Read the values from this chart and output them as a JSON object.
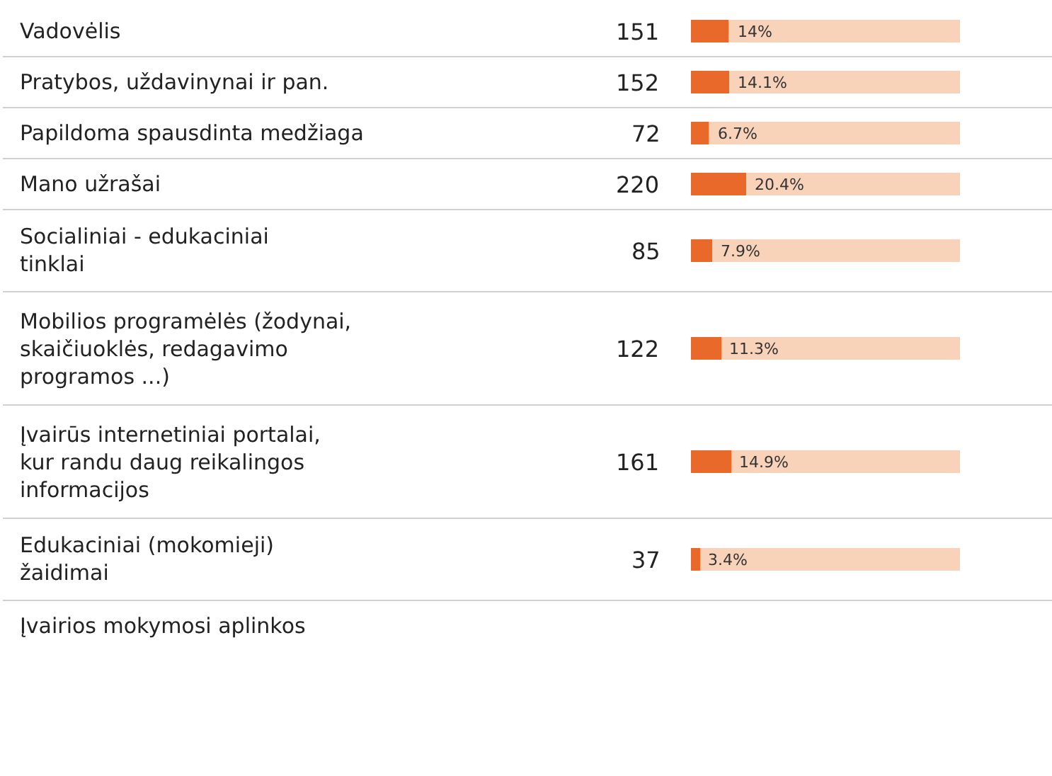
{
  "chart_data": {
    "type": "bar",
    "orientation": "horizontal",
    "categories": [
      "Vadovėlis",
      "Pratybos, uždavinynai ir pan.",
      "Papildoma spausdinta medžiaga",
      "Mano užrašai",
      "Socialiniai - edukaciniai tinklai",
      "Mobilios programėlės (žodynai, skaičiuoklės, redagavimo programos ...)",
      "Įvairūs internetiniai portalai, kur randu daug reikalingos informacijos",
      "Edukaciniai (mokomieji) žaidimai",
      "Įvairios mokymosi aplinkos"
    ],
    "series": [
      {
        "color": "#e8692a",
        "values": [
          14,
          14.1,
          6.7,
          20.4,
          7.9,
          11.3,
          14.9,
          3.4,
          null
        ],
        "value_labels": [
          "14%",
          "14.1%",
          "6.7%",
          "20.4%",
          "7.9%",
          "11.3%",
          "14.9%",
          "3.4%",
          null
        ]
      },
      {
        "color": "#f9d3b9",
        "values": [
          86,
          85.9,
          93.3,
          79.6,
          92.1,
          88.7,
          85.1,
          96.6,
          null
        ]
      }
    ],
    "stacked": true,
    "grid": "y",
    "annotations": [
      "151",
      "152",
      "72",
      "220",
      "85",
      "122",
      "161",
      "37"
    ]
  }
}
